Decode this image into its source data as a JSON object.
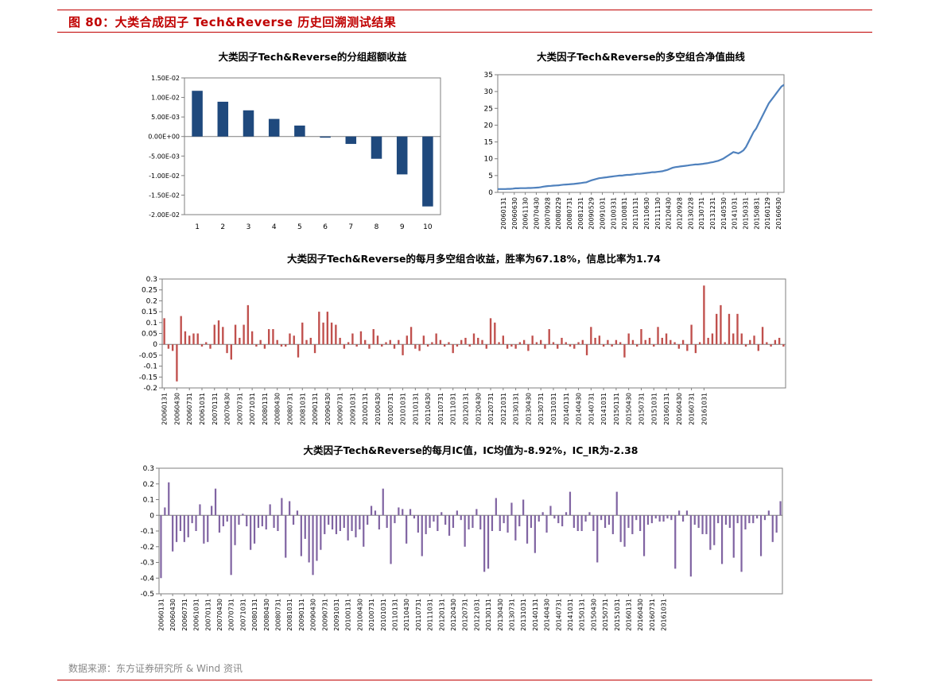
{
  "header": {
    "figure_title": "图 80：大类合成因子 Tech&Reverse 历史回溯测试结果"
  },
  "footer": {
    "source": "数据来源：东方证券研究所 & Wind 资讯"
  },
  "colors": {
    "accent_red": "#c00000",
    "bar_navy": "#1f497d",
    "line_blue": "#4f81bd",
    "bar_red": "#c0504d",
    "bar_purple": "#8064a2"
  },
  "chart_data": [
    {
      "id": "group",
      "type": "bar",
      "title": "大类因子Tech&Reverse的分组超额收益",
      "categories": [
        "1",
        "2",
        "3",
        "4",
        "5",
        "6",
        "7",
        "8",
        "9",
        "10"
      ],
      "values": [
        0.0117,
        0.0089,
        0.0067,
        0.0045,
        0.0028,
        -0.0003,
        -0.0019,
        -0.0057,
        -0.0097,
        -0.0179
      ],
      "ylim": [
        -0.02,
        0.015
      ],
      "yticks": [
        0.015,
        0.01,
        0.005,
        0,
        -0.005,
        -0.01,
        -0.015,
        -0.02
      ],
      "ytick_labels": [
        "1.50E-02",
        "1.00E-02",
        "5.00E-03",
        "0.00E+00",
        "-5.00E-03",
        "-1.00E-02",
        "-1.50E-02",
        "-2.00E-02"
      ],
      "grid": false
    },
    {
      "id": "nav",
      "type": "line",
      "title": "大类因子Tech&Reverse的多空组合净值曲线",
      "x_start": "2006-01",
      "x_end": "2016-11",
      "x_tick_labels": [
        "20060131",
        "20060630",
        "20061130",
        "20070430",
        "20070928",
        "20080229",
        "20080731",
        "20081231",
        "20090529",
        "20091031",
        "20100331",
        "20100831",
        "20110131",
        "20110630",
        "20111130",
        "20120430",
        "20120928",
        "20130228",
        "20130731",
        "20131231",
        "20140530",
        "20141031",
        "20150331",
        "20150831",
        "20160129",
        "20160630"
      ],
      "values": [
        1.0,
        1.0,
        1.0,
        1.0,
        1.05,
        1.05,
        1.1,
        1.2,
        1.2,
        1.25,
        1.25,
        1.25,
        1.3,
        1.3,
        1.35,
        1.4,
        1.45,
        1.55,
        1.7,
        1.8,
        1.9,
        1.95,
        2.0,
        2.05,
        2.1,
        2.2,
        2.3,
        2.35,
        2.4,
        2.45,
        2.5,
        2.6,
        2.7,
        2.8,
        2.9,
        3.0,
        3.3,
        3.6,
        3.8,
        4.0,
        4.2,
        4.3,
        4.4,
        4.5,
        4.6,
        4.7,
        4.8,
        4.9,
        5.0,
        5.0,
        5.1,
        5.2,
        5.2,
        5.3,
        5.4,
        5.5,
        5.5,
        5.6,
        5.7,
        5.8,
        5.9,
        6.0,
        6.0,
        6.1,
        6.2,
        6.3,
        6.5,
        6.7,
        7.0,
        7.3,
        7.5,
        7.6,
        7.7,
        7.8,
        7.9,
        8.0,
        8.1,
        8.2,
        8.3,
        8.3,
        8.4,
        8.5,
        8.6,
        8.7,
        8.9,
        9.0,
        9.2,
        9.4,
        9.7,
        10.0,
        10.5,
        11.0,
        11.5,
        12.0,
        11.8,
        11.6,
        12.0,
        12.5,
        13.5,
        15.0,
        16.5,
        18.0,
        19.0,
        20.5,
        22.0,
        23.5,
        25.0,
        26.5,
        27.5,
        28.5,
        29.5,
        30.5,
        31.5,
        32.0
      ],
      "ylim": [
        0,
        35
      ],
      "yticks": [
        0,
        5,
        10,
        15,
        20,
        25,
        30,
        35
      ],
      "grid": false
    },
    {
      "id": "monthly",
      "type": "bar",
      "title": "大类因子Tech&Reverse的每月多空组合收益，胜率为67.18%，信息比率为1.74",
      "x_start": "2006-01",
      "x_tick_labels": [
        "20060131",
        "20060430",
        "20060731",
        "20061031",
        "20070131",
        "20070430",
        "20070731",
        "20071031",
        "20080131",
        "20080430",
        "20080731",
        "20081031",
        "20090131",
        "20090430",
        "20090731",
        "20091031",
        "20100131",
        "20100430",
        "20100731",
        "20101031",
        "20110131",
        "20110430",
        "20110731",
        "20111031",
        "20120131",
        "20120430",
        "20120731",
        "20121031",
        "20130131",
        "20130430",
        "20130731",
        "20131031",
        "20140131",
        "20140430",
        "20140731",
        "20141031",
        "20150131",
        "20150430",
        "20150731",
        "20151031",
        "20160131",
        "20160430",
        "20160731",
        "20161031"
      ],
      "values": [
        0.12,
        -0.02,
        -0.03,
        -0.17,
        0.13,
        0.06,
        0.04,
        0.05,
        0.05,
        -0.01,
        0.01,
        -0.02,
        0.09,
        0.11,
        0.08,
        -0.04,
        -0.07,
        0.09,
        0.03,
        0.09,
        0.18,
        0.06,
        -0.01,
        0.02,
        -0.02,
        0.07,
        0.07,
        0.02,
        -0.01,
        -0.01,
        0.05,
        0.04,
        -0.06,
        0.1,
        0.02,
        0.03,
        -0.04,
        0.15,
        0.1,
        0.15,
        0.1,
        0.09,
        0.03,
        -0.02,
        0.01,
        0.05,
        -0.01,
        0.06,
        0.02,
        -0.02,
        0.07,
        0.04,
        -0.01,
        0.01,
        0.02,
        -0.02,
        0.02,
        -0.05,
        0.04,
        0.08,
        -0.02,
        -0.03,
        0.04,
        -0.01,
        0.01,
        0.05,
        0.02,
        -0.01,
        0.01,
        -0.04,
        -0.01,
        0.02,
        0.03,
        -0.01,
        0.05,
        0.03,
        0.02,
        -0.02,
        0.12,
        0.1,
        0.01,
        0.04,
        -0.02,
        -0.01,
        -0.02,
        0.01,
        0.02,
        -0.03,
        0.04,
        0.01,
        0.02,
        -0.02,
        0.07,
        0.01,
        -0.02,
        0.03,
        0.01,
        -0.01,
        -0.02,
        0.01,
        0.02,
        -0.05,
        0.08,
        0.03,
        0.04,
        -0.01,
        0.02,
        -0.01,
        0.02,
        0.01,
        -0.06,
        0.05,
        0.02,
        -0.01,
        0.07,
        0.02,
        0.03,
        -0.01,
        0.08,
        0.03,
        0.05,
        0.02,
        0.01,
        -0.02,
        0.02,
        -0.03,
        0.09,
        -0.04,
        0.01,
        0.27,
        0.03,
        0.05,
        0.14,
        0.18,
        0.01,
        0.14,
        0.05,
        0.14,
        0.05,
        -0.01,
        0.02,
        0.04,
        -0.03,
        0.08,
        0.01,
        -0.01,
        0.02,
        0.03,
        -0.01
      ],
      "ylim": [
        -0.2,
        0.3
      ],
      "yticks": [
        0.3,
        0.25,
        0.2,
        0.15,
        0.1,
        0.05,
        0,
        -0.05,
        -0.1,
        -0.15,
        -0.2
      ],
      "grid": false
    },
    {
      "id": "ic",
      "type": "bar",
      "title": "大类因子Tech&Reverse的每月IC值，IC均值为-8.92%，IC_IR为-2.38",
      "x_start": "2006-01",
      "x_tick_labels": [
        "20060131",
        "20060430",
        "20060731",
        "20061031",
        "20070131",
        "20070430",
        "20070731",
        "20071031",
        "20080131",
        "20080430",
        "20080731",
        "20081031",
        "20090131",
        "20090430",
        "20090731",
        "20091031",
        "20100131",
        "20100430",
        "20100731",
        "20101031",
        "20110131",
        "20110430",
        "20110731",
        "20111031",
        "20120131",
        "20120430",
        "20120731",
        "20121031",
        "20130131",
        "20130430",
        "20130731",
        "20131031",
        "20140131",
        "20140430",
        "20140731",
        "20141031",
        "20150131",
        "20150430",
        "20150731",
        "20151031",
        "20160131",
        "20160430",
        "20160731",
        "20161031"
      ],
      "values": [
        -0.4,
        0.05,
        0.21,
        -0.23,
        -0.17,
        -0.1,
        -0.17,
        -0.14,
        -0.05,
        -0.1,
        0.07,
        -0.18,
        -0.17,
        0.06,
        0.17,
        -0.11,
        -0.07,
        -0.04,
        -0.38,
        -0.19,
        -0.06,
        0.01,
        -0.07,
        -0.22,
        -0.18,
        -0.08,
        -0.07,
        -0.09,
        0.07,
        -0.08,
        -0.1,
        0.11,
        -0.27,
        0.09,
        -0.06,
        0.03,
        -0.26,
        -0.15,
        -0.3,
        -0.38,
        -0.29,
        -0.22,
        -0.12,
        -0.06,
        -0.09,
        -0.12,
        -0.1,
        -0.08,
        -0.16,
        -0.1,
        -0.14,
        -0.09,
        -0.2,
        -0.06,
        0.06,
        0.03,
        -0.09,
        0.17,
        -0.08,
        -0.31,
        -0.05,
        0.05,
        0.04,
        -0.18,
        0.04,
        -0.02,
        -0.11,
        -0.26,
        -0.12,
        -0.08,
        -0.04,
        -0.1,
        0.02,
        -0.06,
        -0.13,
        -0.08,
        0.03,
        -0.03,
        -0.2,
        -0.09,
        -0.08,
        0.04,
        -0.09,
        -0.36,
        -0.34,
        -0.1,
        0.11,
        -0.1,
        -0.05,
        -0.11,
        0.08,
        -0.16,
        -0.07,
        0.1,
        -0.18,
        -0.08,
        -0.24,
        -0.04,
        0.02,
        -0.11,
        0.06,
        -0.02,
        -0.05,
        -0.07,
        0.02,
        0.15,
        -0.08,
        -0.1,
        -0.1,
        -0.04,
        0.02,
        -0.1,
        -0.3,
        -0.03,
        -0.08,
        -0.06,
        -0.12,
        0.15,
        -0.17,
        -0.2,
        -0.08,
        -0.12,
        -0.03,
        -0.1,
        -0.26,
        -0.06,
        -0.05,
        -0.02,
        -0.04,
        -0.04,
        -0.02,
        -0.03,
        -0.34,
        0.03,
        -0.04,
        0.03,
        -0.39,
        -0.06,
        -0.08,
        -0.12,
        -0.12,
        -0.22,
        -0.19,
        -0.05,
        -0.31,
        -0.06,
        -0.08,
        -0.27,
        -0.05,
        -0.36,
        -0.09,
        -0.05,
        -0.05,
        -0.02,
        -0.26,
        -0.03,
        0.03,
        -0.17,
        -0.11,
        0.09
      ],
      "ylim": [
        -0.5,
        0.3
      ],
      "yticks": [
        0.3,
        0.2,
        0.1,
        0,
        -0.1,
        -0.2,
        -0.3,
        -0.4,
        -0.5
      ],
      "grid": false
    }
  ]
}
